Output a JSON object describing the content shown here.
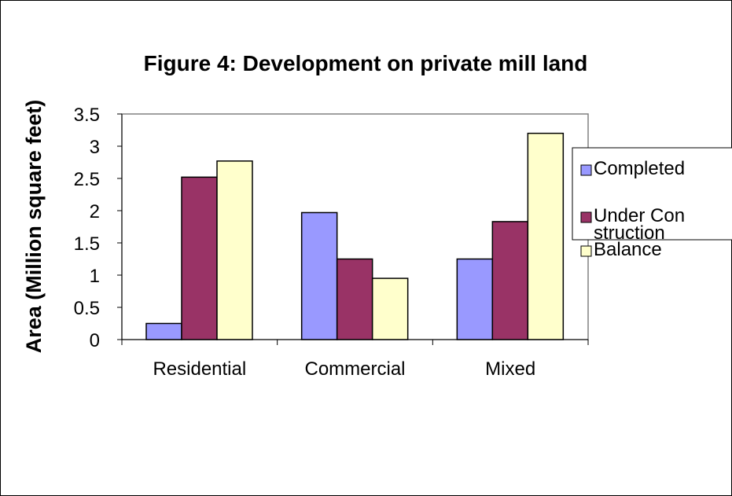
{
  "chart_data": {
    "type": "bar",
    "title": "Figure 4: Development on private mill land",
    "y_label": "Area (Million square feet)",
    "categories": [
      "Residential",
      "Commercial",
      "Mixed"
    ],
    "series": [
      {
        "name": "Completed",
        "color": "#9999ff",
        "values": [
          0.25,
          1.97,
          1.25
        ]
      },
      {
        "name": "Under Construction",
        "color": "#993366",
        "values": [
          2.52,
          1.25,
          1.83
        ]
      },
      {
        "name": "Balance",
        "color": "#ffffcc",
        "values": [
          2.77,
          0.95,
          3.2
        ]
      }
    ],
    "ylim": [
      0,
      3.5
    ],
    "yticks": [
      0,
      0.5,
      1,
      1.5,
      2,
      2.5,
      3,
      3.5
    ],
    "legend": "right"
  }
}
